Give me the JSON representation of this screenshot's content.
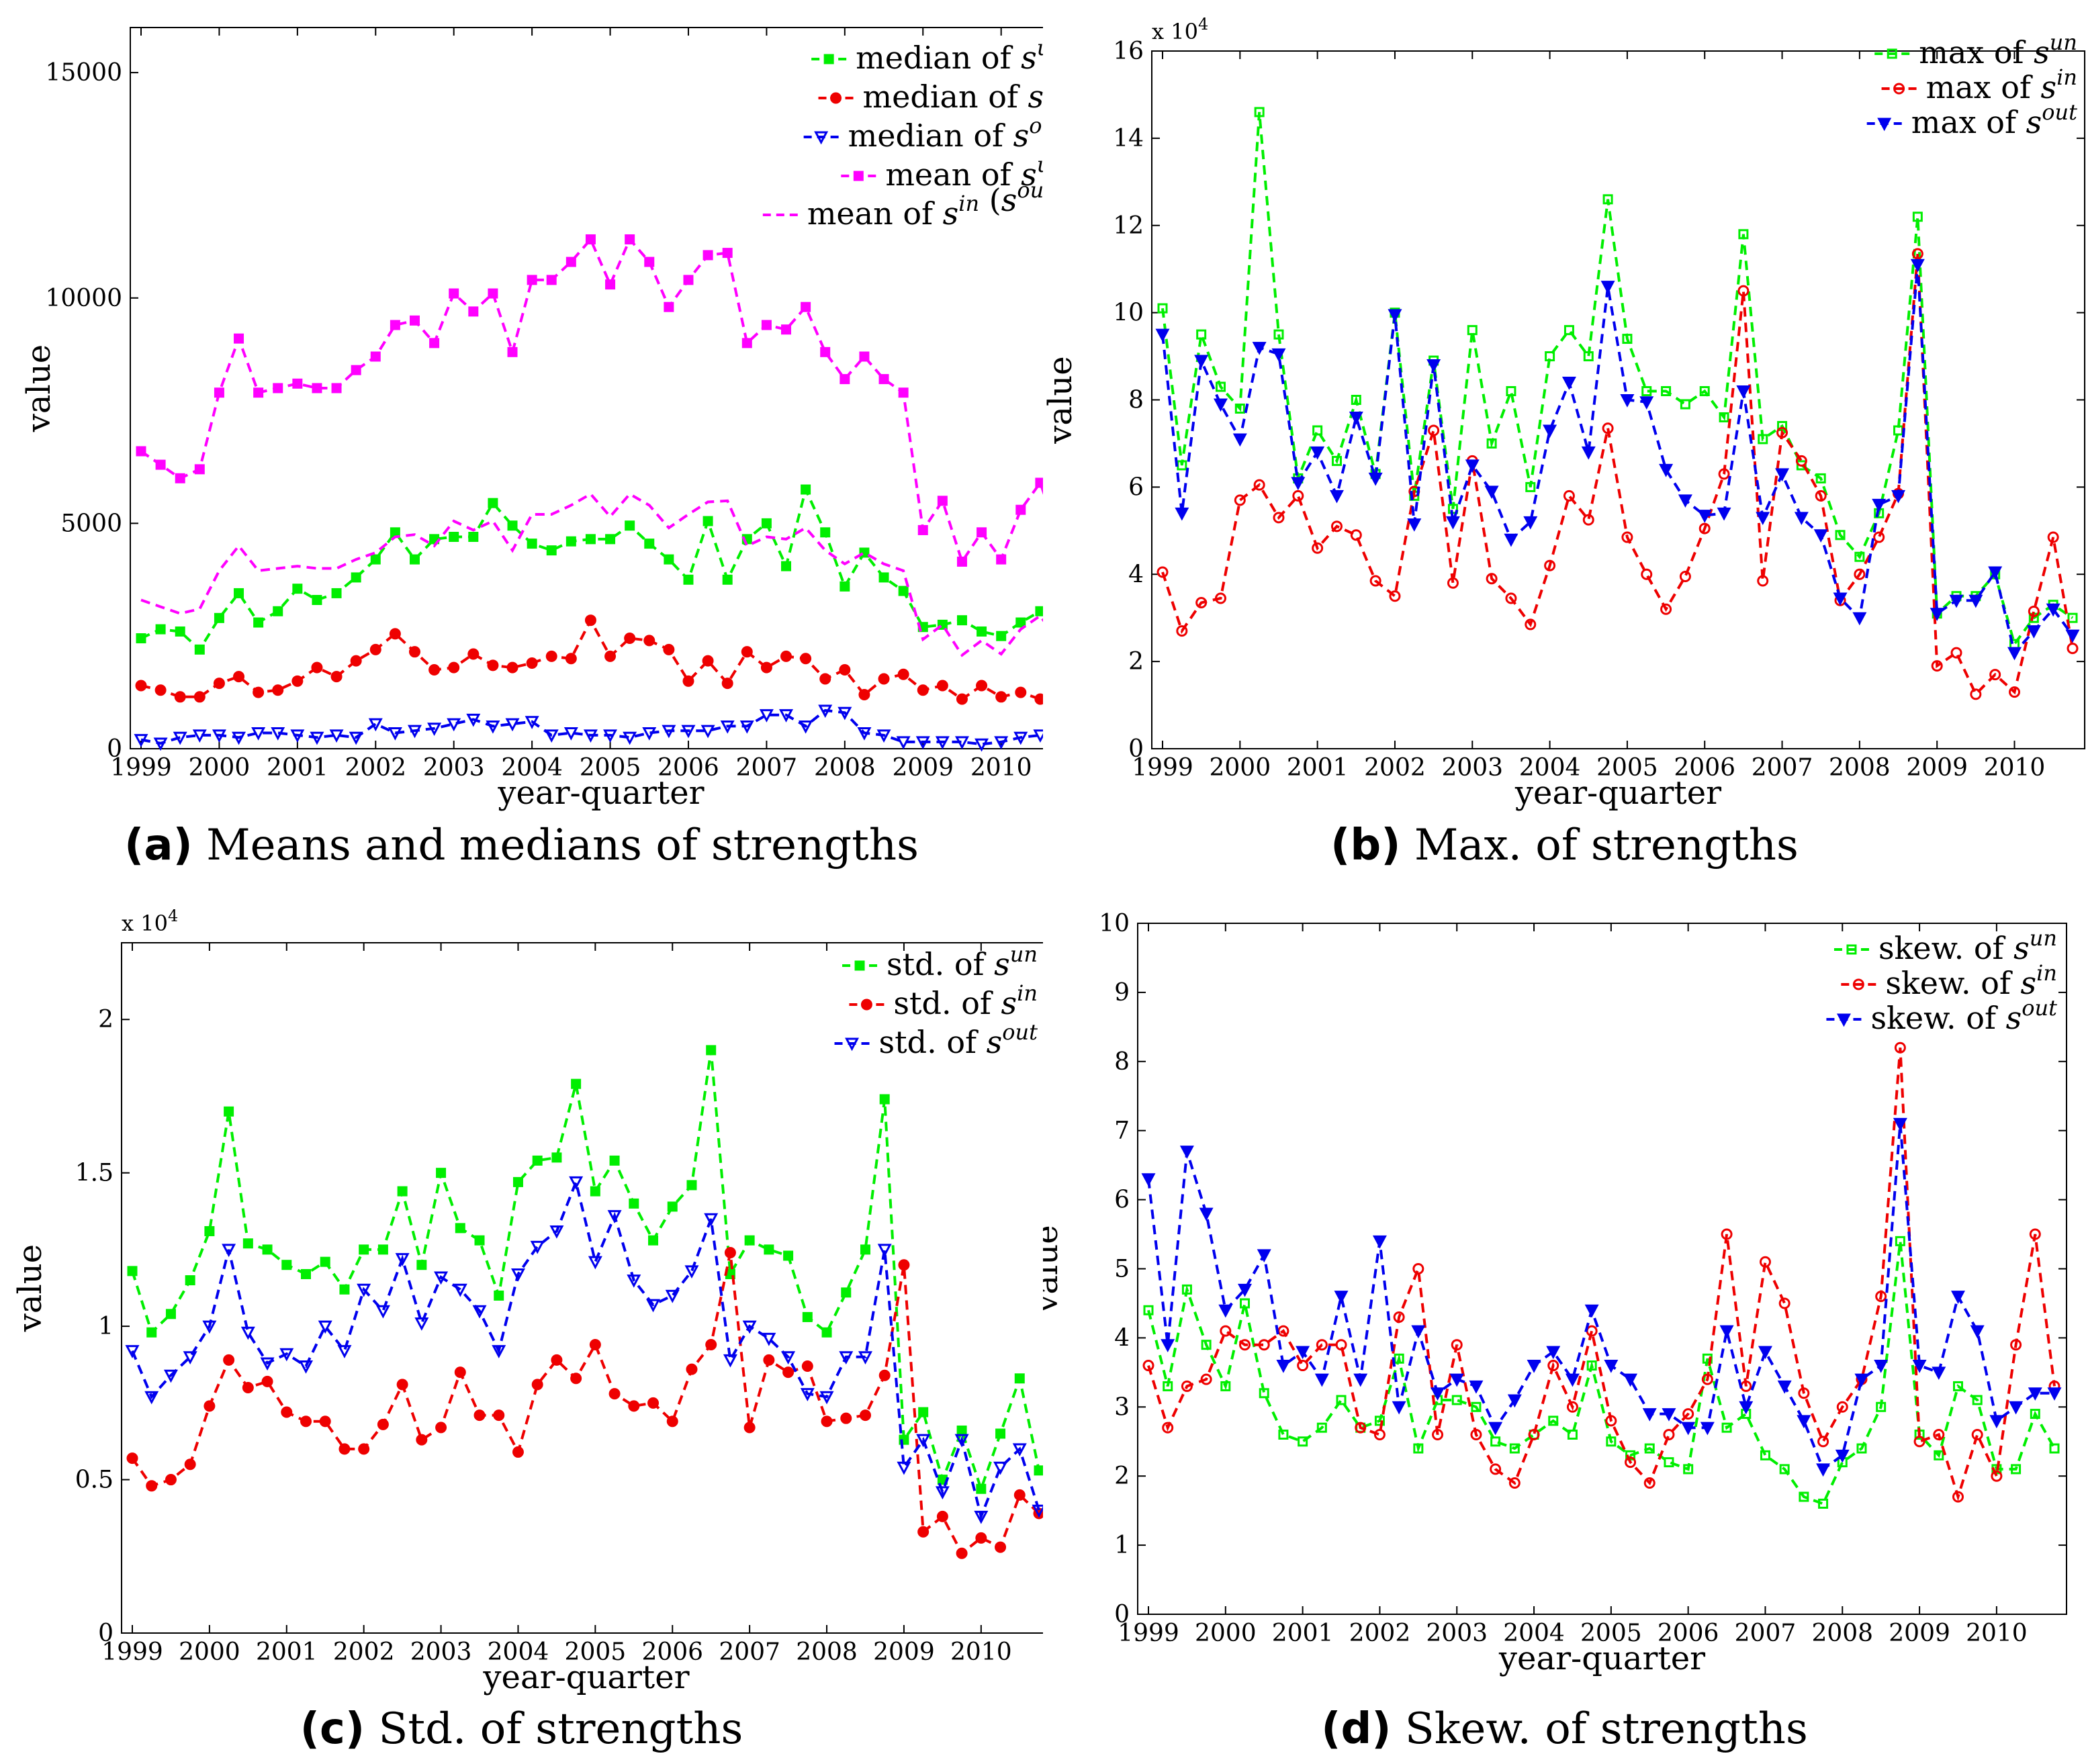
{
  "chart_data": [
    {
      "id": "a",
      "type": "line",
      "caption_label": "(a)",
      "caption_text": "Means and medians of strengths",
      "xlabel": "year-quarter",
      "ylabel": "value",
      "ylim": [
        0,
        16000
      ],
      "yticks": [
        0,
        5000,
        10000,
        15000
      ],
      "ytick_labels": [
        "0",
        "5000",
        "10000",
        "15000"
      ],
      "exponent_label": "",
      "legend_position": "top-right",
      "x_ticks": [
        "1999",
        "2000",
        "2001",
        "2002",
        "2003",
        "2004",
        "2005",
        "2006",
        "2007",
        "2008",
        "2009",
        "2010"
      ],
      "series": [
        {
          "name": "median of s^un",
          "legend_parts": [
            "median of ",
            "s",
            "un"
          ],
          "color": "#00ee00",
          "marker": "square",
          "filled": true,
          "values": [
            2450,
            2650,
            2600,
            2200,
            2900,
            3450,
            2800,
            3050,
            3550,
            3300,
            3450,
            3800,
            4200,
            4800,
            4200,
            4650,
            4700,
            4700,
            5450,
            4950,
            4550,
            4400,
            4600,
            4650,
            4650,
            4950,
            4550,
            4200,
            3750,
            5050,
            3750,
            4650,
            5000,
            4050,
            5750,
            4800,
            3600,
            4350,
            3800,
            3500,
            2700,
            2750,
            2850,
            2600,
            2500,
            2800,
            3050,
            3150
          ]
        },
        {
          "name": "median of s^in",
          "legend_parts": [
            "median of ",
            "s",
            "in"
          ],
          "color": "#ee0000",
          "marker": "circle",
          "filled": true,
          "values": [
            1400,
            1300,
            1150,
            1150,
            1450,
            1600,
            1250,
            1300,
            1500,
            1800,
            1600,
            1950,
            2200,
            2550,
            2150,
            1750,
            1800,
            2100,
            1850,
            1800,
            1900,
            2050,
            2000,
            2850,
            2050,
            2450,
            2400,
            2200,
            1500,
            1950,
            1450,
            2150,
            1800,
            2050,
            2000,
            1550,
            1750,
            1200,
            1550,
            1650,
            1300,
            1400,
            1100,
            1400,
            1150,
            1250,
            1100,
            1000
          ]
        },
        {
          "name": "median of s^out",
          "legend_parts": [
            "median of ",
            "s",
            "out"
          ],
          "color": "#0000ee",
          "marker": "triangle",
          "filled": false,
          "values": [
            200,
            120,
            250,
            300,
            300,
            250,
            350,
            350,
            300,
            250,
            300,
            250,
            550,
            350,
            400,
            450,
            550,
            650,
            500,
            550,
            600,
            300,
            350,
            300,
            300,
            250,
            350,
            400,
            400,
            400,
            500,
            500,
            750,
            750,
            500,
            850,
            800,
            350,
            300,
            150,
            150,
            150,
            150,
            100,
            150,
            250,
            300,
            200
          ]
        },
        {
          "name": "mean of s^un",
          "legend_parts": [
            "mean of ",
            "s",
            "un"
          ],
          "color": "#ff00ff",
          "marker": "square",
          "filled": true,
          "values": [
            6600,
            6300,
            6000,
            6200,
            7900,
            9100,
            7900,
            8000,
            8100,
            8000,
            8000,
            8400,
            8700,
            9400,
            9500,
            9000,
            10100,
            9700,
            10100,
            8800,
            10400,
            10400,
            10800,
            11300,
            10300,
            11300,
            10800,
            9800,
            10400,
            10950,
            11000,
            9000,
            9400,
            9300,
            9800,
            8800,
            8200,
            8700,
            8200,
            7900,
            4850,
            5500,
            4150,
            4800,
            4200,
            5300,
            5900,
            4650
          ]
        },
        {
          "name": "mean of s^in (s^out)",
          "legend_parts": [
            "mean of ",
            "s",
            "in",
            " (",
            "s",
            "out",
            ")"
          ],
          "color": "#ff00ff",
          "marker": "none",
          "filled": false,
          "values": [
            3300,
            3150,
            3000,
            3100,
            3950,
            4500,
            3950,
            4000,
            4050,
            4000,
            4000,
            4200,
            4350,
            4700,
            4750,
            4500,
            5050,
            4850,
            5050,
            4400,
            5200,
            5200,
            5400,
            5650,
            5150,
            5650,
            5400,
            4900,
            5200,
            5475,
            5500,
            4500,
            4700,
            4650,
            4900,
            4400,
            4100,
            4350,
            4100,
            3950,
            2425,
            2750,
            2075,
            2400,
            2100,
            2650,
            2950,
            2325
          ]
        }
      ]
    },
    {
      "id": "b",
      "type": "line",
      "caption_label": "(b)",
      "caption_text": "Max. of strengths",
      "xlabel": "year-quarter",
      "ylabel": "value",
      "ylim": [
        0,
        160000
      ],
      "yticks": [
        0,
        20000,
        40000,
        60000,
        80000,
        100000,
        120000,
        140000,
        160000
      ],
      "ytick_labels": [
        "0",
        "2",
        "4",
        "6",
        "8",
        "10",
        "12",
        "14",
        "16"
      ],
      "exponent_label": "x 10",
      "exponent_power": "4",
      "legend_position": "top-right",
      "x_ticks": [
        "1999",
        "2000",
        "2001",
        "2002",
        "2003",
        "2004",
        "2005",
        "2006",
        "2007",
        "2008",
        "2009",
        "2010"
      ],
      "series": [
        {
          "name": "max of s^un",
          "legend_parts": [
            "max of ",
            "s",
            "un"
          ],
          "color": "#00ee00",
          "marker": "square",
          "filled": false,
          "values": [
            101000,
            65000,
            95000,
            83000,
            78000,
            146000,
            95000,
            62000,
            73000,
            66000,
            80000,
            63000,
            100000,
            58000,
            89000,
            55000,
            96000,
            70000,
            82000,
            60000,
            90000,
            96000,
            90000,
            126000,
            94000,
            82000,
            82000,
            79000,
            82000,
            76000,
            118000,
            71000,
            74000,
            65000,
            62000,
            49000,
            44000,
            54000,
            73000,
            122000,
            31000,
            35000,
            35000,
            40000,
            24000,
            30000,
            33000,
            30000
          ]
        },
        {
          "name": "max of s^in",
          "legend_parts": [
            "max of ",
            "s",
            "in"
          ],
          "color": "#ee0000",
          "marker": "circle",
          "filled": false,
          "values": [
            40500,
            27000,
            33500,
            34500,
            57000,
            60500,
            53000,
            58000,
            46000,
            51000,
            49000,
            38500,
            35000,
            59000,
            73000,
            38000,
            66000,
            39000,
            34500,
            28500,
            42000,
            58000,
            52500,
            73500,
            48500,
            40000,
            32000,
            39500,
            50500,
            63000,
            105000,
            38500,
            72500,
            66000,
            58000,
            34000,
            40000,
            48500,
            58500,
            113500,
            19000,
            22000,
            12500,
            17000,
            13000,
            31500,
            48500,
            23000
          ]
        },
        {
          "name": "max of s^out",
          "legend_parts": [
            "max of ",
            "s",
            "out"
          ],
          "color": "#0000ee",
          "marker": "triangle",
          "filled": true,
          "values": [
            95000,
            54000,
            89000,
            79000,
            71000,
            92000,
            90500,
            61000,
            68000,
            58000,
            76000,
            62000,
            99500,
            51500,
            88000,
            52000,
            65000,
            59000,
            48000,
            52000,
            73000,
            84000,
            68000,
            106000,
            80000,
            79500,
            64000,
            57000,
            53500,
            54000,
            82000,
            53000,
            63000,
            53000,
            49000,
            34500,
            30000,
            56000,
            58000,
            111000,
            31000,
            34000,
            34000,
            40500,
            22000,
            27000,
            32000,
            26000
          ]
        }
      ]
    },
    {
      "id": "c",
      "type": "line",
      "caption_label": "(c)",
      "caption_text": "Std. of strengths",
      "xlabel": "year-quarter",
      "ylabel": "value",
      "ylim": [
        0,
        22500
      ],
      "yticks": [
        0,
        5000,
        10000,
        15000,
        20000
      ],
      "ytick_labels": [
        "0",
        "0.5",
        "1",
        "1.5",
        "2"
      ],
      "exponent_label": "x 10",
      "exponent_power": "4",
      "legend_position": "top-right",
      "x_ticks": [
        "1999",
        "2000",
        "2001",
        "2002",
        "2003",
        "2004",
        "2005",
        "2006",
        "2007",
        "2008",
        "2009",
        "2010"
      ],
      "series": [
        {
          "name": "std. of s^un",
          "legend_parts": [
            "std.  of ",
            "s",
            "un"
          ],
          "color": "#00ee00",
          "marker": "square",
          "filled": true,
          "values": [
            11800,
            9800,
            10400,
            11500,
            13100,
            17000,
            12700,
            12500,
            12000,
            11700,
            12100,
            11200,
            12500,
            12500,
            14400,
            12000,
            15000,
            13200,
            12800,
            11000,
            14700,
            15400,
            15500,
            17900,
            14400,
            15400,
            14000,
            12800,
            13900,
            14600,
            19000,
            11700,
            12800,
            12500,
            12300,
            10300,
            9800,
            11100,
            12500,
            17400,
            6300,
            7200,
            5000,
            6600,
            4700,
            6500,
            8300,
            5300
          ]
        },
        {
          "name": "std. of s^in",
          "legend_parts": [
            "std.  of ",
            "s",
            "in"
          ],
          "color": "#ee0000",
          "marker": "circle",
          "filled": true,
          "values": [
            5700,
            4800,
            5000,
            5500,
            7400,
            8900,
            8000,
            8200,
            7200,
            6900,
            6900,
            6000,
            6000,
            6800,
            8100,
            6300,
            6700,
            8500,
            7100,
            7100,
            5900,
            8100,
            8900,
            8300,
            9400,
            7800,
            7400,
            7500,
            6900,
            8600,
            9400,
            12400,
            6700,
            8900,
            8500,
            8700,
            6900,
            7000,
            7100,
            8400,
            12000,
            3300,
            3800,
            2600,
            3100,
            2800,
            4500,
            3900
          ]
        },
        {
          "name": "std. of s^out",
          "legend_parts": [
            "std.  of ",
            "s",
            "out"
          ],
          "color": "#0000ee",
          "marker": "triangle",
          "filled": false,
          "values": [
            9200,
            7700,
            8400,
            9000,
            10000,
            12500,
            9800,
            8800,
            9100,
            8700,
            10000,
            9200,
            11200,
            10500,
            12200,
            10100,
            11600,
            11200,
            10500,
            9200,
            11700,
            12600,
            13100,
            14700,
            12100,
            13600,
            11500,
            10700,
            11000,
            11800,
            13500,
            8900,
            10000,
            9600,
            9000,
            7800,
            7700,
            9000,
            9000,
            12500,
            5400,
            6300,
            4600,
            6300,
            3800,
            5400,
            6000,
            4000
          ]
        }
      ]
    },
    {
      "id": "d",
      "type": "line",
      "caption_label": "(d)",
      "caption_text": "Skew. of strengths",
      "xlabel": "year-quarter",
      "ylabel": "value",
      "ylim": [
        0,
        10
      ],
      "yticks": [
        0,
        1,
        2,
        3,
        4,
        5,
        6,
        7,
        8,
        9,
        10
      ],
      "ytick_labels": [
        "0",
        "1",
        "2",
        "3",
        "4",
        "5",
        "6",
        "7",
        "8",
        "9",
        "10"
      ],
      "exponent_label": "",
      "legend_position": "top-right",
      "x_ticks": [
        "1999",
        "2000",
        "2001",
        "2002",
        "2003",
        "2004",
        "2005",
        "2006",
        "2007",
        "2008",
        "2009",
        "2010"
      ],
      "series": [
        {
          "name": "skew. of s^un",
          "legend_parts": [
            "skew.  of ",
            "s",
            "un"
          ],
          "color": "#00ee00",
          "marker": "square",
          "filled": false,
          "values": [
            4.4,
            3.3,
            4.7,
            3.9,
            3.3,
            4.5,
            3.2,
            2.6,
            2.5,
            2.7,
            3.1,
            2.7,
            2.8,
            3.7,
            2.4,
            3.1,
            3.1,
            3.0,
            2.5,
            2.4,
            2.6,
            2.8,
            2.6,
            3.6,
            2.5,
            2.3,
            2.4,
            2.2,
            2.1,
            3.7,
            2.7,
            2.9,
            2.3,
            2.1,
            1.7,
            1.6,
            2.2,
            2.4,
            3.0,
            5.4,
            2.6,
            2.3,
            3.3,
            3.1,
            2.1,
            2.1,
            2.9,
            2.4
          ]
        },
        {
          "name": "skew. of s^in",
          "legend_parts": [
            "skew.  of ",
            "s",
            "in"
          ],
          "color": "#ee0000",
          "marker": "circle",
          "filled": false,
          "values": [
            3.6,
            2.7,
            3.3,
            3.4,
            4.1,
            3.9,
            3.9,
            4.1,
            3.6,
            3.9,
            3.9,
            2.7,
            2.6,
            4.3,
            5.0,
            2.6,
            3.9,
            2.6,
            2.1,
            1.9,
            2.6,
            3.6,
            3.0,
            4.1,
            2.8,
            2.2,
            1.9,
            2.6,
            2.9,
            3.4,
            5.5,
            3.3,
            5.1,
            4.5,
            3.2,
            2.5,
            3.0,
            3.4,
            4.6,
            8.2,
            2.5,
            2.6,
            1.7,
            2.6,
            2.0,
            3.9,
            5.5,
            3.3
          ]
        },
        {
          "name": "skew. of s^out",
          "legend_parts": [
            "skew.  of ",
            "s",
            "out"
          ],
          "color": "#0000ee",
          "marker": "triangle",
          "filled": true,
          "values": [
            6.3,
            3.9,
            6.7,
            5.8,
            4.4,
            4.7,
            5.2,
            3.6,
            3.8,
            3.4,
            4.6,
            3.4,
            5.4,
            3.0,
            4.1,
            3.2,
            3.4,
            3.3,
            2.7,
            3.1,
            3.6,
            3.8,
            3.4,
            4.4,
            3.6,
            3.4,
            2.9,
            2.9,
            2.7,
            2.7,
            4.1,
            3.0,
            3.8,
            3.3,
            2.8,
            2.1,
            2.3,
            3.4,
            3.6,
            7.1,
            3.6,
            3.5,
            4.6,
            4.1,
            2.8,
            3.0,
            3.2,
            3.2
          ]
        }
      ]
    }
  ]
}
